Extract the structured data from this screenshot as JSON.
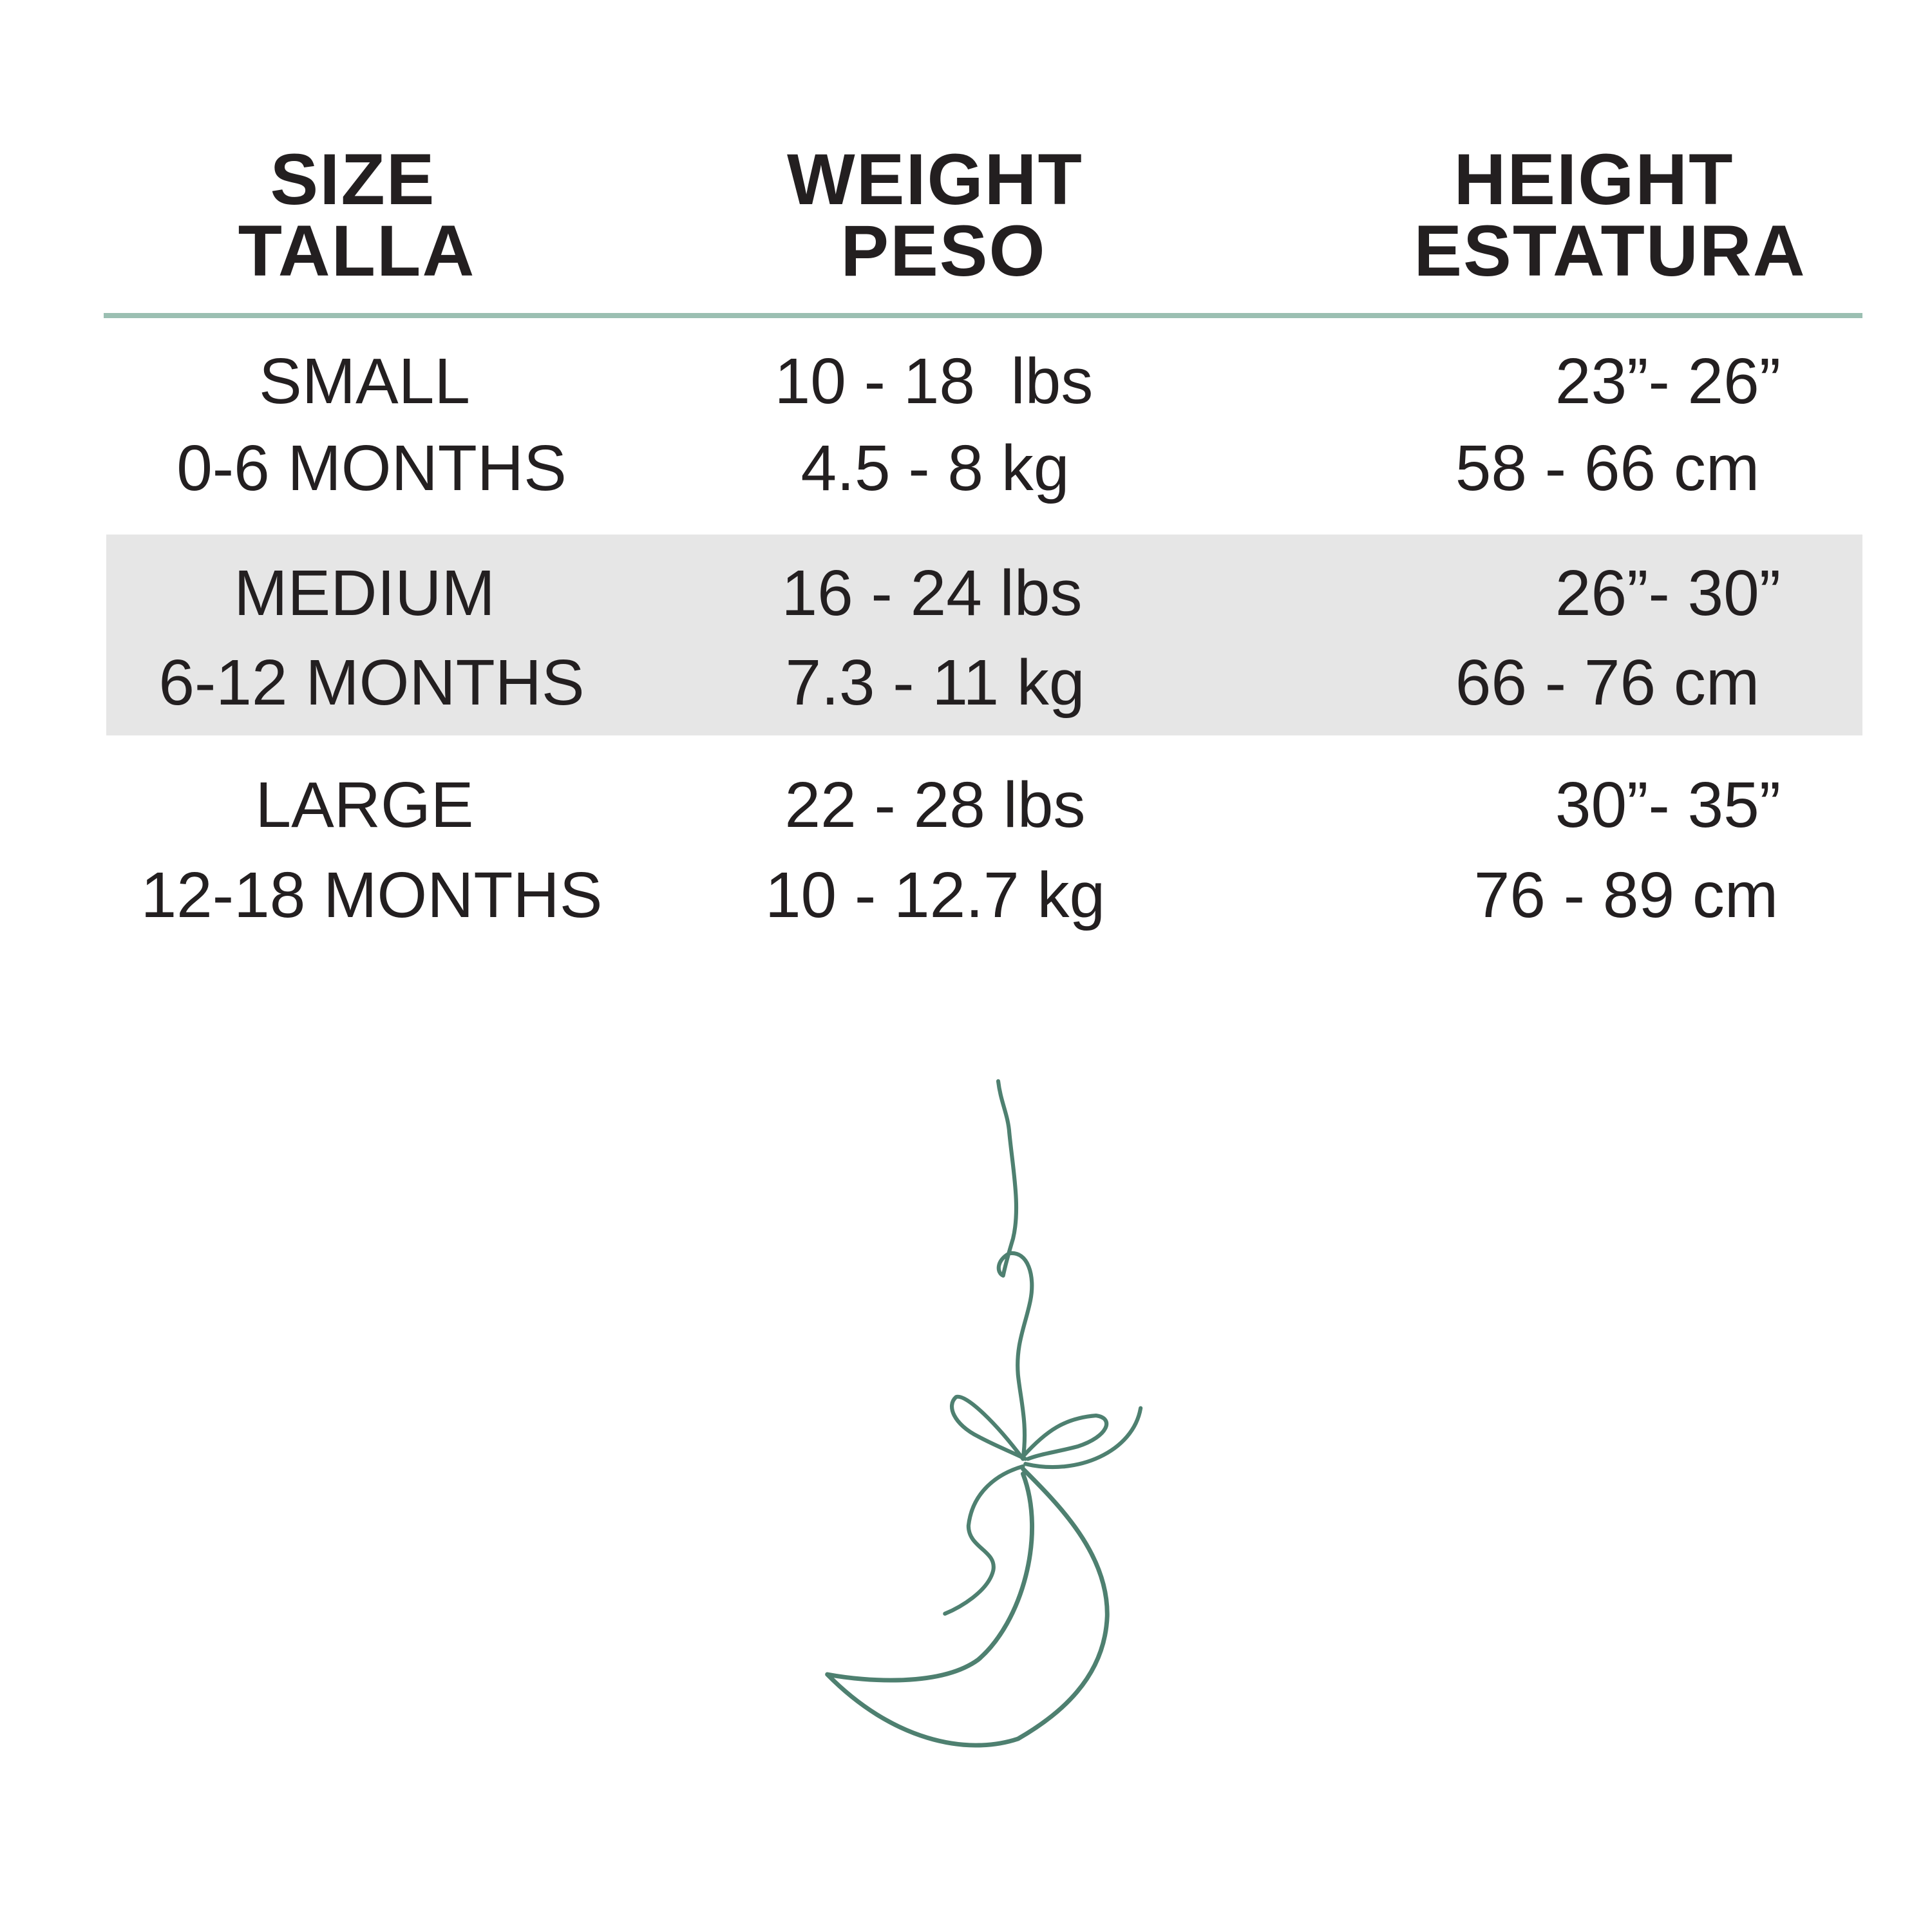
{
  "colors": {
    "divider": "#9bbfb2",
    "band": "#e6e6e6",
    "text": "#231f20",
    "moon": "#4e8070"
  },
  "header": {
    "size": {
      "en": "SIZE",
      "es": "TALLA"
    },
    "weight": {
      "en": "WEIGHT",
      "es": "PESO"
    },
    "height": {
      "en": "HEIGHT",
      "es": "ESTATURA"
    }
  },
  "rows": [
    {
      "size": "SMALL",
      "age": "0-6 MONTHS",
      "lbs": "10 - 18  lbs",
      "kg": "4.5 - 8 kg",
      "inches": "23”- 26”",
      "cm": "58 - 66 cm"
    },
    {
      "size": "MEDIUM",
      "age": "6-12 MONTHS",
      "lbs": "16 - 24 lbs",
      "kg": "7.3 - 11 kg",
      "inches": "26”- 30”",
      "cm": "66 - 76 cm"
    },
    {
      "size": "LARGE",
      "age": "12-18 MONTHS",
      "lbs": "22 - 28 lbs",
      "kg": "10 - 12.7 kg",
      "inches": "30”- 35”",
      "cm": "76 - 89 cm"
    }
  ],
  "illustration": {
    "icon": "hanging-moon-with-bow-icon"
  }
}
